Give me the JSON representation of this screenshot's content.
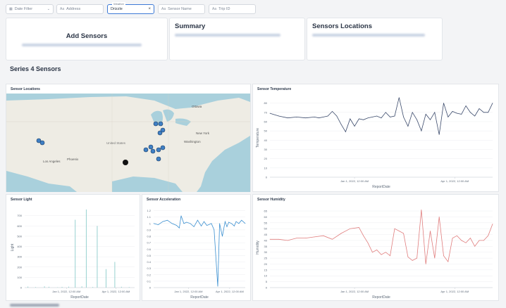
{
  "filters": {
    "date_filter": "Date Filter",
    "address": "Address",
    "weather_label": "Weather",
    "weather_value": "Drizzle",
    "sensor_name": "Sensor Name",
    "trip_id": "Trip ID"
  },
  "cards": {
    "add_sensors": "Add Sensors",
    "summary": "Summary",
    "sensors_locations": "Sensors Locations"
  },
  "section_title": "Series 4 Sensors",
  "map": {
    "title": "Sensor Locations",
    "labels": {
      "ottawa": "Ottawa",
      "new_york": "New York",
      "washington": "Washington",
      "united_states": "United States",
      "phoenix": "Phoenix",
      "los_angeles": "Los Angeles"
    }
  },
  "temperature": {
    "title": "Sensor Temperature",
    "ylabel": "Temperature",
    "xlabel": "ReportDate",
    "y_ticks": [
      "0",
      "10",
      "20",
      "30",
      "40",
      "50",
      "60",
      "70",
      "80"
    ],
    "x_ticks": [
      "Jan 1, 2022, 12:00 AM",
      "Apr 1, 2022, 12:00 AM"
    ],
    "color": "#3b4a6b"
  },
  "light": {
    "title": "Sensor Light",
    "ylabel": "Light",
    "xlabel": "ReportDate",
    "y_ticks": [
      "0",
      "100",
      "200",
      "300",
      "400",
      "500",
      "600",
      "700"
    ],
    "x_ticks": [
      "Jan 1, 2022, 12:00 AM",
      "Apr 1, 2022, 12:00 AM"
    ],
    "color": "#7fc7c5"
  },
  "acceleration": {
    "title": "Sensor Acceleration",
    "xlabel": "ReportDate",
    "y_ticks": [
      "0",
      "0.1",
      "0.2",
      "0.3",
      "0.4",
      "0.5",
      "0.6",
      "0.7",
      "0.8",
      "0.9",
      "1",
      "1.1",
      "1.2"
    ],
    "x_ticks": [
      "Jan 1, 2022, 12:00 AM",
      "Apr 1, 2022, 12:00 AM"
    ],
    "color": "#3a8fd0"
  },
  "humidity": {
    "title": "Sensor Humidity",
    "ylabel": "Humidity",
    "xlabel": "ReportDate",
    "y_ticks": [
      "0",
      "5",
      "10",
      "15",
      "20",
      "25",
      "30",
      "35",
      "40",
      "45",
      "50",
      "55",
      "60",
      "65"
    ],
    "x_ticks": [
      "Jan 1, 2022, 12:00 AM",
      "Apr 1, 2022, 12:00 AM"
    ],
    "color": "#e07d7d"
  },
  "chart_data": [
    {
      "type": "line",
      "title": "Sensor Temperature",
      "xlabel": "ReportDate",
      "ylabel": "Temperature",
      "ylim": [
        0,
        85
      ],
      "x": [
        0,
        4,
        8,
        12,
        16,
        20,
        22,
        24,
        26,
        28,
        30,
        32,
        34,
        36,
        38,
        40,
        42,
        44,
        46,
        48,
        50,
        52,
        54,
        56,
        58,
        60,
        62,
        64,
        66,
        68,
        70,
        72,
        74,
        76,
        78,
        80,
        82,
        84,
        86,
        88,
        90,
        92,
        94,
        96,
        98,
        100
      ],
      "values": [
        69,
        66,
        64,
        65,
        64,
        65,
        64,
        65,
        66,
        71,
        66,
        57,
        49,
        63,
        55,
        63,
        62,
        64,
        65,
        66,
        64,
        70,
        65,
        66,
        86,
        65,
        55,
        70,
        62,
        50,
        68,
        62,
        70,
        46,
        80,
        65,
        71,
        69,
        68,
        77,
        70,
        66,
        74,
        70,
        70,
        80
      ]
    },
    {
      "type": "bar",
      "title": "Sensor Light",
      "xlabel": "ReportDate",
      "ylabel": "Light",
      "ylim": [
        0,
        780
      ],
      "x": [
        3,
        10,
        18,
        22,
        30,
        34,
        40,
        46,
        52,
        56,
        62,
        66,
        74,
        82,
        88,
        95
      ],
      "values": [
        10,
        5,
        12,
        8,
        3,
        7,
        9,
        660,
        12,
        760,
        6,
        600,
        180,
        250,
        8,
        5
      ]
    },
    {
      "type": "line",
      "title": "Sensor Acceleration",
      "xlabel": "ReportDate",
      "ylim": [
        0,
        1.25
      ],
      "x": [
        0,
        5,
        10,
        15,
        20,
        25,
        28,
        30,
        33,
        36,
        40,
        44,
        48,
        52,
        55,
        58,
        60,
        63,
        66,
        70,
        72,
        75,
        78,
        80,
        82,
        85,
        88,
        90,
        93,
        96,
        100
      ],
      "values": [
        1.0,
        0.98,
        1.03,
        1.05,
        1.0,
        0.97,
        0.93,
        1.12,
        1.0,
        1.02,
        1.0,
        0.95,
        1.05,
        0.96,
        1.03,
        0.97,
        0.98,
        1.0,
        0.9,
        0.02,
        1.0,
        0.8,
        1.03,
        0.95,
        1.02,
        1.0,
        0.96,
        1.03,
        1.0,
        1.05,
        1.0
      ]
    },
    {
      "type": "line",
      "title": "Sensor Humidity",
      "xlabel": "ReportDate",
      "ylabel": "Humidity",
      "ylim": [
        0,
        68
      ],
      "x": [
        0,
        4,
        8,
        12,
        16,
        20,
        24,
        28,
        32,
        36,
        40,
        42,
        44,
        46,
        48,
        50,
        52,
        54,
        56,
        58,
        60,
        62,
        64,
        66,
        68,
        70,
        72,
        74,
        76,
        78,
        80,
        82,
        84,
        86,
        88,
        90,
        92,
        94,
        96,
        98,
        100
      ],
      "values": [
        41,
        41,
        40,
        42,
        42,
        43,
        44,
        41,
        46,
        50,
        51,
        44,
        38,
        30,
        32,
        28,
        30,
        27,
        50,
        48,
        46,
        26,
        23,
        25,
        66,
        20,
        48,
        25,
        60,
        27,
        22,
        42,
        44,
        40,
        38,
        42,
        35,
        40,
        40,
        44,
        54
      ]
    }
  ]
}
